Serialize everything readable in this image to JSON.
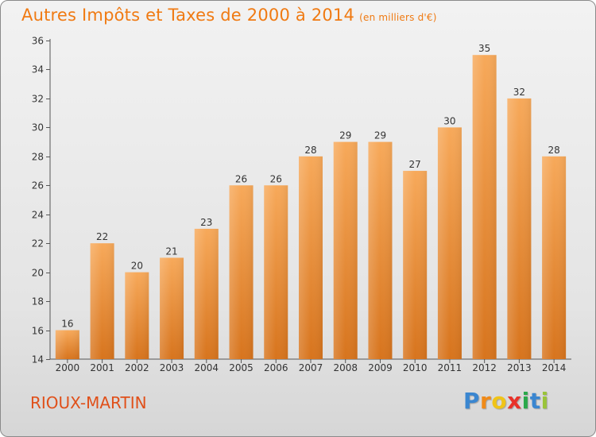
{
  "header": {
    "title": "Autres Impôts et Taxes de 2000 à 2014",
    "subtitle": "(en milliers d'€)"
  },
  "footer": {
    "commune": "RIOUX-MARTIN",
    "logo": [
      "P",
      "r",
      "o",
      "x",
      "i",
      "t",
      "i"
    ]
  },
  "colors": {
    "bar_light": "#f7a95a",
    "bar_dark": "#d7741d",
    "title": "#f07a12",
    "logo_letters": [
      "#3a86d0",
      "#f08a18",
      "#f0c418",
      "#e8322a",
      "#2aa84a",
      "#3a86d0",
      "#9ac43a"
    ]
  },
  "chart_data": {
    "type": "bar",
    "title": "Autres Impôts et Taxes de 2000 à 2014",
    "subtitle": "(en milliers d'€)",
    "categories": [
      "2000",
      "2001",
      "2002",
      "2003",
      "2004",
      "2005",
      "2006",
      "2007",
      "2008",
      "2009",
      "2010",
      "2011",
      "2012",
      "2013",
      "2014"
    ],
    "values": [
      16,
      22,
      20,
      21,
      23,
      26,
      26,
      28,
      29,
      29,
      27,
      30,
      35,
      32,
      28
    ],
    "ylim": [
      14,
      36
    ],
    "yticks": [
      14,
      16,
      18,
      20,
      22,
      24,
      26,
      28,
      30,
      32,
      34,
      36
    ],
    "xlabel": "",
    "ylabel": "",
    "grid": false,
    "data_labels": true
  }
}
